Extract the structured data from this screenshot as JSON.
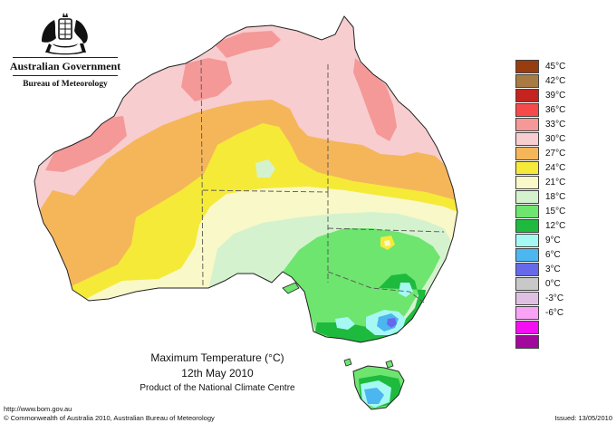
{
  "header": {
    "government": "Australian Government",
    "bureau": "Bureau of Meteorology"
  },
  "map": {
    "title": "Maximum Temperature (°C)",
    "date": "12th May 2010",
    "subtitle": "Product of the National Climate Centre"
  },
  "legend": [
    {
      "label": "45°C",
      "color": "#983d10"
    },
    {
      "label": "42°C",
      "color": "#a87b42"
    },
    {
      "label": "39°C",
      "color": "#c4231f"
    },
    {
      "label": "36°C",
      "color": "#f74949"
    },
    {
      "label": "33°C",
      "color": "#f59898"
    },
    {
      "label": "30°C",
      "color": "#f7cdcf"
    },
    {
      "label": "27°C",
      "color": "#f5b65a"
    },
    {
      "label": "24°C",
      "color": "#f5ea38"
    },
    {
      "label": "21°C",
      "color": "#f8f8c8"
    },
    {
      "label": "18°C",
      "color": "#d5f2ce"
    },
    {
      "label": "15°C",
      "color": "#6de56f"
    },
    {
      "label": "12°C",
      "color": "#1dba3e"
    },
    {
      "label": "9°C",
      "color": "#a6f9f3"
    },
    {
      "label": "6°C",
      "color": "#4cb6f1"
    },
    {
      "label": "3°C",
      "color": "#6669e9"
    },
    {
      "label": "0°C",
      "color": "#c8c8c8"
    },
    {
      "label": "-3°C",
      "color": "#e0c0e2"
    },
    {
      "label": "-6°C",
      "color": "#f9a3f6"
    },
    {
      "label": "",
      "color": "#f30ff2"
    },
    {
      "label": "",
      "color": "#a2089b"
    }
  ],
  "footer": {
    "url": "http://www.bom.gov.au",
    "copyright": "© Commonwealth of Australia 2010, Australian Bureau of Meteorology",
    "issued": "Issued: 13/05/2010"
  },
  "icons": [
    "coat-of-arms-icon"
  ]
}
